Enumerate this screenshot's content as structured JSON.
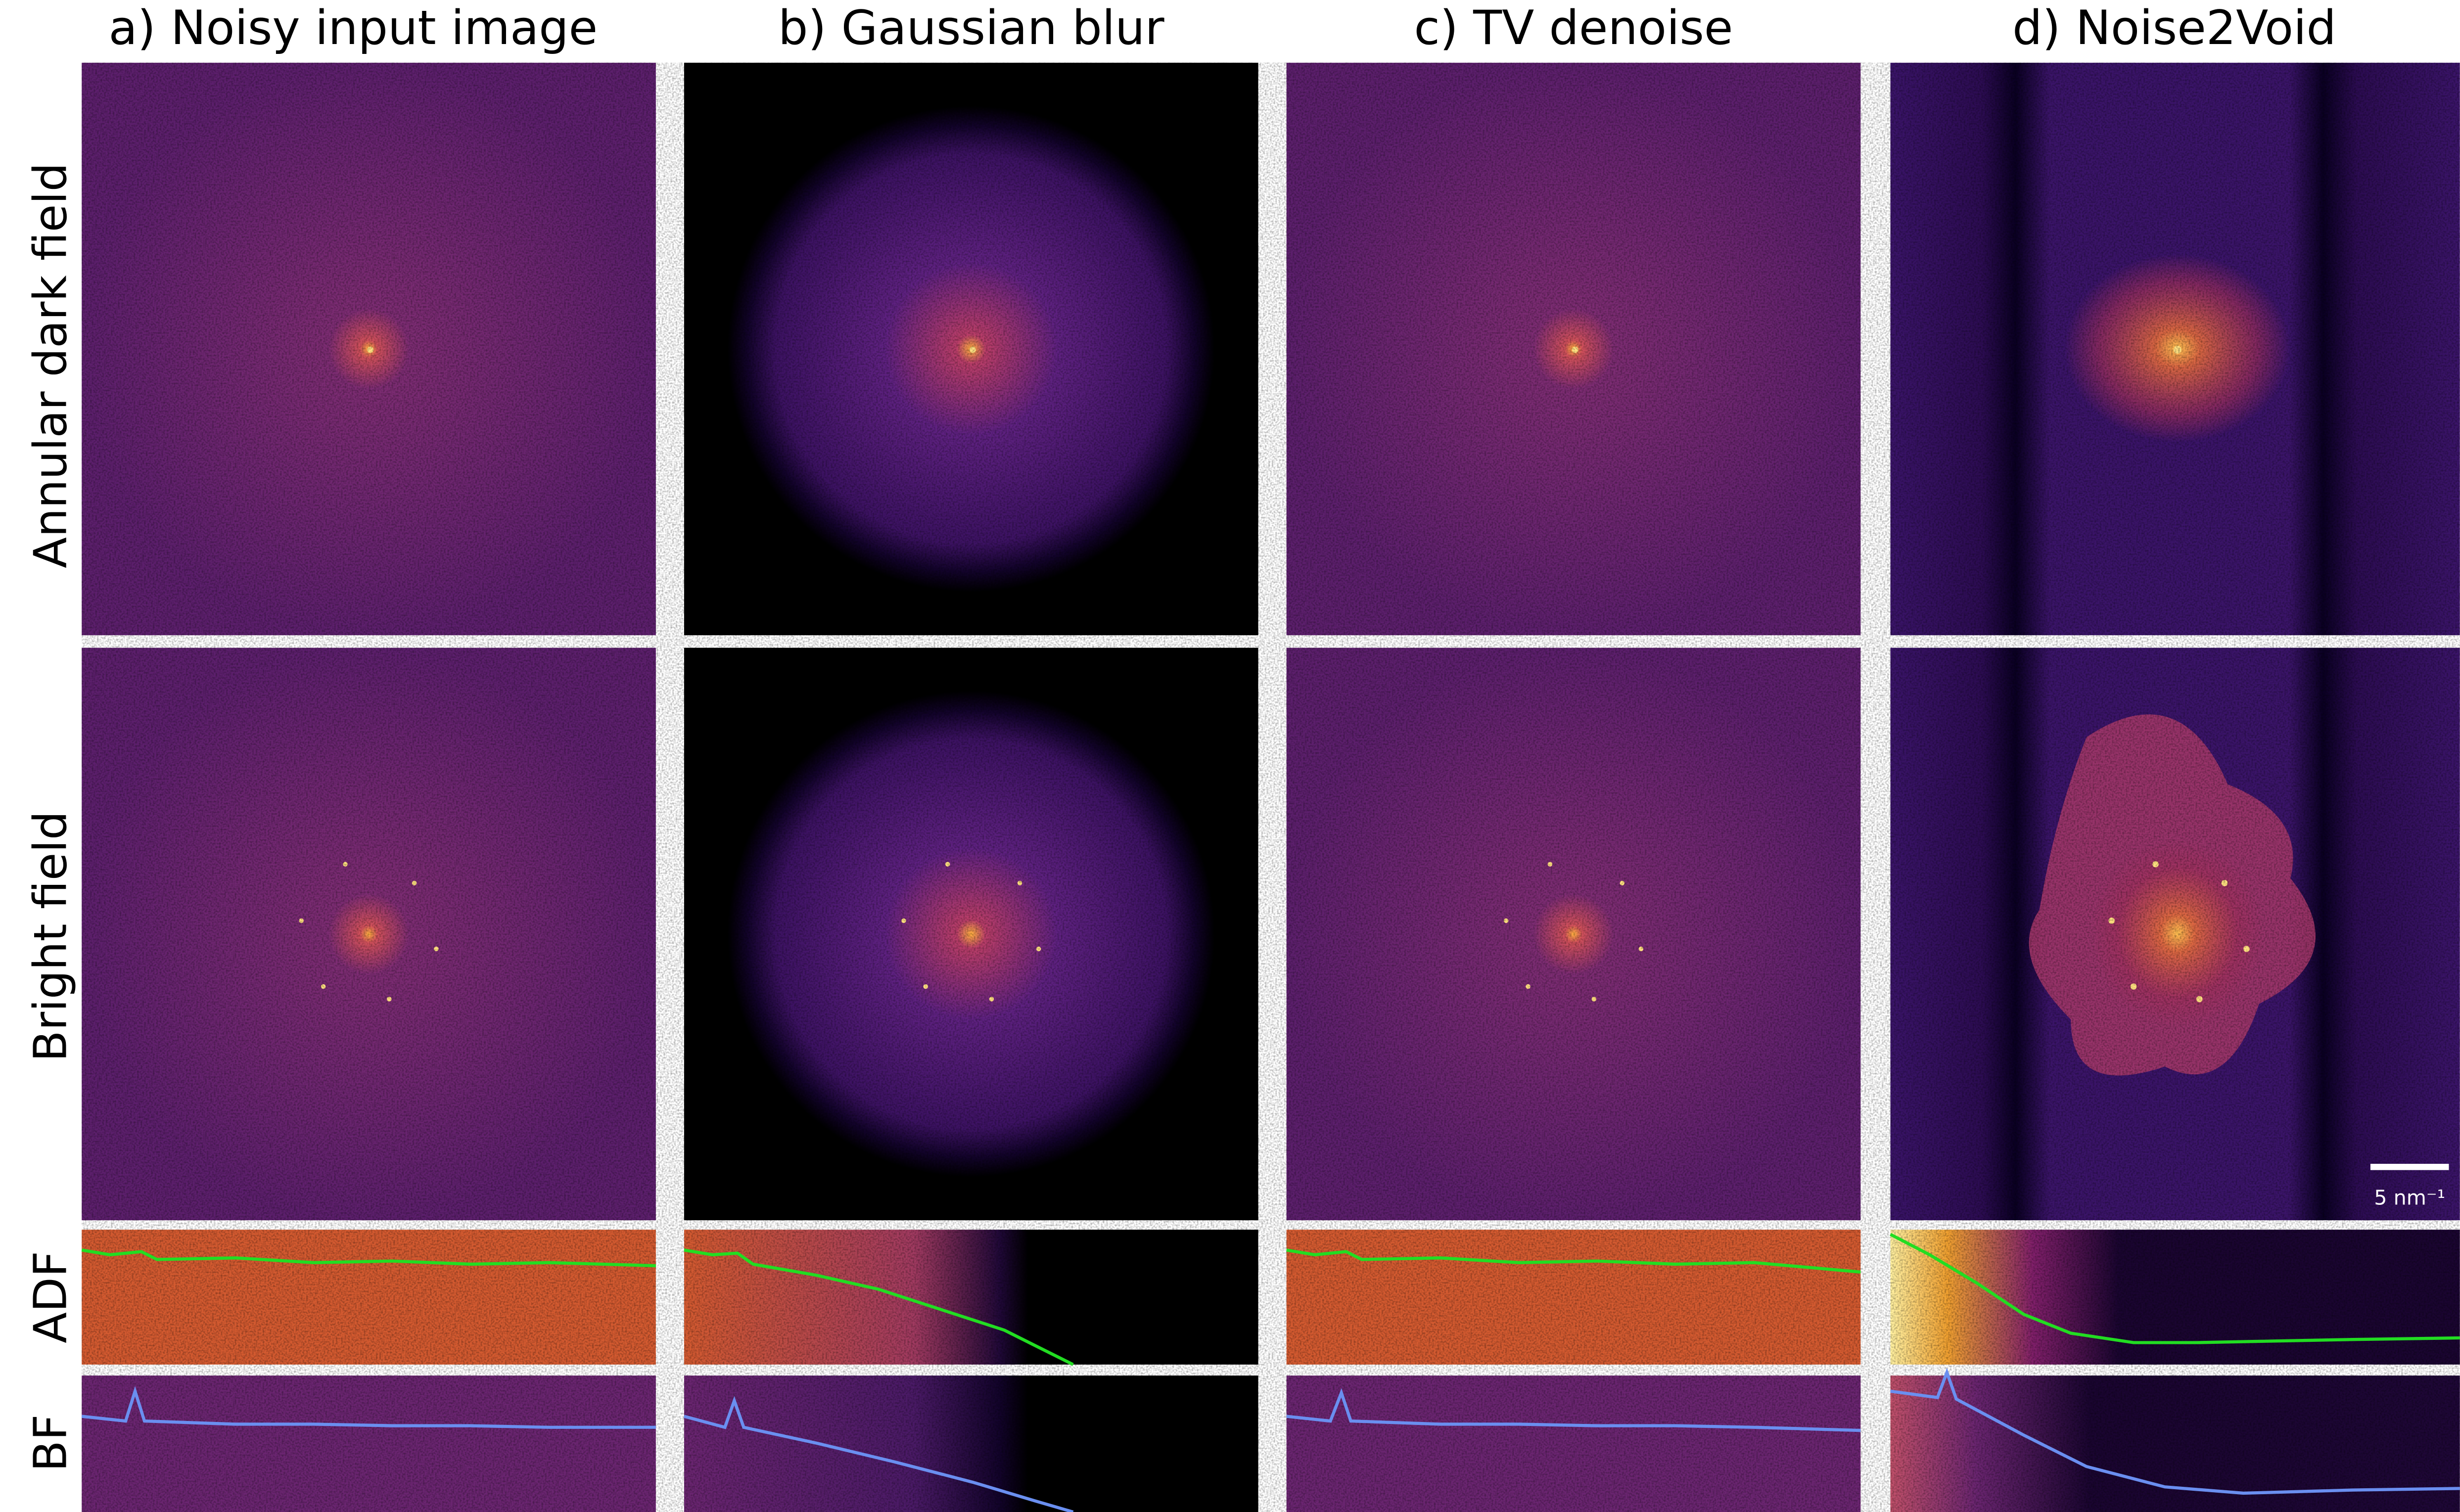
{
  "columns": [
    {
      "title": "a)  Noisy input image"
    },
    {
      "title": "b) Gaussian blur"
    },
    {
      "title": "c) TV denoise"
    },
    {
      "title": "d) Noise2Void"
    }
  ],
  "rows": [
    "Annular dark field",
    "Bright field",
    "ADF",
    "BF"
  ],
  "scale_bar": {
    "label": "5 nm⁻¹"
  }
}
